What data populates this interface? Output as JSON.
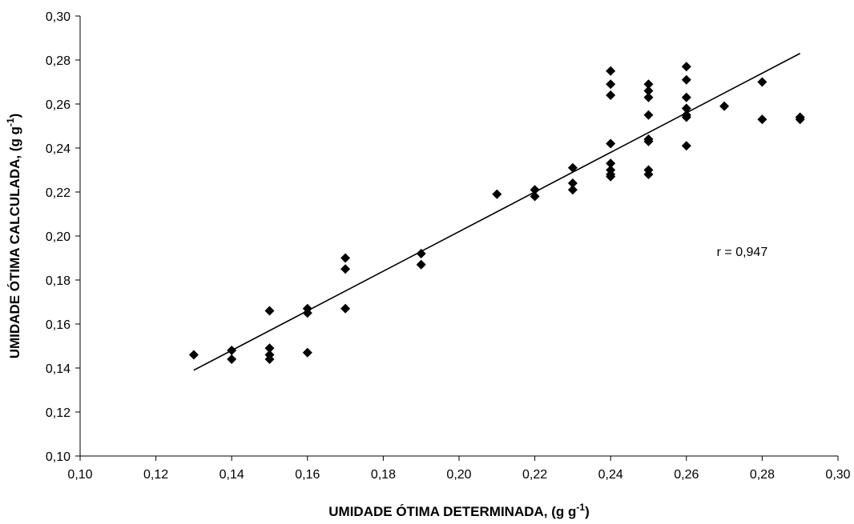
{
  "chart_data": {
    "type": "scatter",
    "xlabel_main": "UMIDADE ÓTIMA DETERMINADA, (g g",
    "xlabel_sup": "-1",
    "xlabel_end": ")",
    "ylabel_main": "UMIDADE ÓTIMA CALCULADA, (g g",
    "ylabel_sup": "-1",
    "ylabel_end": ")",
    "xlim": [
      0.1,
      0.3
    ],
    "ylim": [
      0.1,
      0.3
    ],
    "x_ticks": [
      0.1,
      0.12,
      0.14,
      0.16,
      0.18,
      0.2,
      0.22,
      0.24,
      0.26,
      0.28,
      0.3
    ],
    "x_tick_labels": [
      "0,10",
      "0,12",
      "0,14",
      "0,16",
      "0,18",
      "0,20",
      "0,22",
      "0,24",
      "0,26",
      "0,28",
      "0,30"
    ],
    "y_ticks": [
      0.1,
      0.12,
      0.14,
      0.16,
      0.18,
      0.2,
      0.22,
      0.24,
      0.26,
      0.28,
      0.3
    ],
    "y_tick_labels": [
      "0,10",
      "0,12",
      "0,14",
      "0,16",
      "0,18",
      "0,20",
      "0,22",
      "0,24",
      "0,26",
      "0,28",
      "0,30"
    ],
    "grid": false,
    "points": [
      [
        0.13,
        0.146
      ],
      [
        0.14,
        0.148
      ],
      [
        0.14,
        0.144
      ],
      [
        0.15,
        0.166
      ],
      [
        0.15,
        0.149
      ],
      [
        0.15,
        0.146
      ],
      [
        0.15,
        0.144
      ],
      [
        0.16,
        0.167
      ],
      [
        0.16,
        0.165
      ],
      [
        0.16,
        0.147
      ],
      [
        0.17,
        0.19
      ],
      [
        0.17,
        0.185
      ],
      [
        0.17,
        0.167
      ],
      [
        0.19,
        0.192
      ],
      [
        0.19,
        0.187
      ],
      [
        0.21,
        0.219
      ],
      [
        0.22,
        0.221
      ],
      [
        0.22,
        0.218
      ],
      [
        0.23,
        0.231
      ],
      [
        0.23,
        0.224
      ],
      [
        0.23,
        0.221
      ],
      [
        0.24,
        0.275
      ],
      [
        0.24,
        0.269
      ],
      [
        0.24,
        0.264
      ],
      [
        0.24,
        0.242
      ],
      [
        0.24,
        0.233
      ],
      [
        0.24,
        0.23
      ],
      [
        0.24,
        0.228
      ],
      [
        0.24,
        0.227
      ],
      [
        0.25,
        0.269
      ],
      [
        0.25,
        0.266
      ],
      [
        0.25,
        0.263
      ],
      [
        0.25,
        0.255
      ],
      [
        0.25,
        0.244
      ],
      [
        0.25,
        0.243
      ],
      [
        0.25,
        0.23
      ],
      [
        0.25,
        0.228
      ],
      [
        0.26,
        0.277
      ],
      [
        0.26,
        0.271
      ],
      [
        0.26,
        0.263
      ],
      [
        0.26,
        0.258
      ],
      [
        0.26,
        0.255
      ],
      [
        0.26,
        0.254
      ],
      [
        0.26,
        0.241
      ],
      [
        0.27,
        0.259
      ],
      [
        0.28,
        0.27
      ],
      [
        0.28,
        0.253
      ],
      [
        0.29,
        0.254
      ],
      [
        0.29,
        0.253
      ]
    ],
    "trendline": {
      "x": [
        0.13,
        0.29
      ],
      "y": [
        0.139,
        0.283
      ]
    },
    "annotation": "r = 0,947",
    "annotation_pos": [
      0.268,
      0.191
    ],
    "marker": "diamond",
    "color": "#000000"
  }
}
